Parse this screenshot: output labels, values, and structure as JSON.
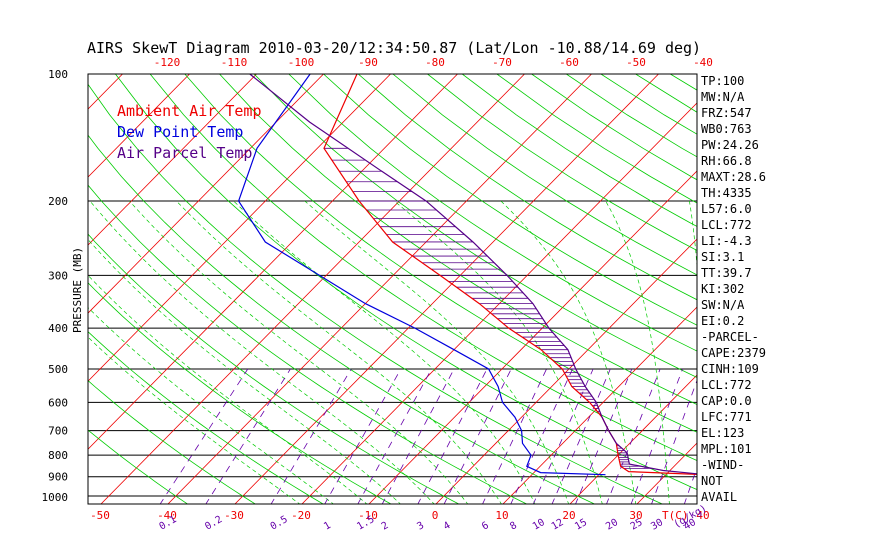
{
  "chart_data": {
    "type": "line",
    "title": "AIRS SkewT Diagram 2010-03-20/12:34:50.87 (Lat/Lon -10.88/14.69 deg)",
    "ylabel": "PRESSURE (MB)",
    "xlabel": "T(C)",
    "mixing_ratio_unit": "(g/kg)",
    "pressure_ticks": [
      100,
      200,
      300,
      400,
      500,
      600,
      700,
      800,
      900,
      1000
    ],
    "temp_ticks_bottom": [
      -50,
      -40,
      -30,
      -20,
      -10,
      0,
      10,
      20,
      30,
      40
    ],
    "temp_ticks_top": [
      -120,
      -110,
      -100,
      -90,
      -80,
      -70,
      -60,
      -50,
      -40
    ],
    "mixing_ratio_ticks": [
      "0.1",
      "0.2",
      "0.5",
      "1",
      "1.5",
      "2",
      "3",
      "4",
      "6",
      "8",
      "10",
      "12",
      "15",
      "20",
      "25",
      "30",
      "40"
    ],
    "series": [
      {
        "name": "Ambient Air Temp",
        "color": "#ee0000",
        "values": [
          [
            100,
            -75
          ],
          [
            150,
            -69
          ],
          [
            200,
            -56
          ],
          [
            250,
            -45
          ],
          [
            300,
            -33
          ],
          [
            350,
            -23
          ],
          [
            400,
            -15
          ],
          [
            450,
            -7
          ],
          [
            500,
            -1
          ],
          [
            550,
            3
          ],
          [
            600,
            8
          ],
          [
            650,
            12
          ],
          [
            700,
            15
          ],
          [
            750,
            18
          ],
          [
            800,
            20
          ],
          [
            850,
            22
          ],
          [
            875,
            24
          ],
          [
            890,
            36
          ]
        ]
      },
      {
        "name": "Dew Point Temp",
        "color": "#0000dd",
        "values": [
          [
            100,
            -82
          ],
          [
            150,
            -79
          ],
          [
            200,
            -74
          ],
          [
            250,
            -64
          ],
          [
            300,
            -51
          ],
          [
            350,
            -40
          ],
          [
            400,
            -29
          ],
          [
            450,
            -20
          ],
          [
            500,
            -12
          ],
          [
            550,
            -8
          ],
          [
            600,
            -5
          ],
          [
            650,
            -1
          ],
          [
            700,
            2
          ],
          [
            750,
            4
          ],
          [
            800,
            7
          ],
          [
            850,
            8
          ],
          [
            880,
            11
          ],
          [
            890,
            21
          ]
        ]
      },
      {
        "name": "Air Parcel Temp",
        "color": "#550088",
        "values": [
          [
            100,
            -91
          ],
          [
            130,
            -75
          ],
          [
            170,
            -57
          ],
          [
            200,
            -46
          ],
          [
            250,
            -33
          ],
          [
            300,
            -23
          ],
          [
            350,
            -15
          ],
          [
            400,
            -9
          ],
          [
            450,
            -3
          ],
          [
            500,
            1
          ],
          [
            550,
            5
          ],
          [
            600,
            9
          ],
          [
            650,
            12
          ],
          [
            700,
            15
          ],
          [
            750,
            18
          ],
          [
            790,
            21
          ],
          [
            840,
            23
          ],
          [
            870,
            29
          ],
          [
            890,
            36
          ]
        ]
      }
    ],
    "grid": true,
    "legend": "top-left"
  },
  "indices": [
    "TP:100",
    "MW:N/A",
    "FRZ:547",
    "WB0:763",
    "PW:24.26",
    "RH:66.8",
    "MAXT:28.6",
    "TH:4335",
    "L57:6.0",
    "LCL:772",
    "LI:-4.3",
    "SI:3.1",
    "TT:39.7",
    "KI:302",
    "SW:N/A",
    "EI:0.2",
    "-PARCEL-",
    "CAPE:2379",
    "CINH:109",
    "LCL:772",
    "CAP:0.0",
    "LFC:771",
    "EL:123",
    "MPL:101",
    "-WIND-",
    "NOT",
    "AVAIL"
  ],
  "colors": {
    "frame": "#000000",
    "isotherm": "#ee0000",
    "dry_adiabat": "#00cc00",
    "moist_adiabat": "#00cc00",
    "mixing_ratio": "#6600aa",
    "axis_labels_temp": "#ee0000",
    "axis_labels_mixing": "#6600aa"
  }
}
